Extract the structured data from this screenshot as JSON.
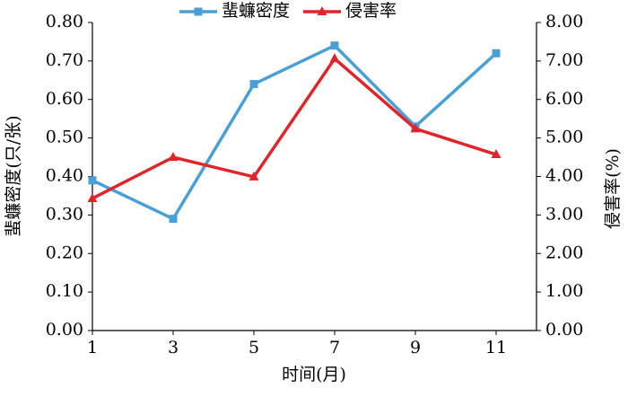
{
  "chart_data": {
    "type": "line",
    "x": [
      1,
      3,
      5,
      7,
      9,
      11
    ],
    "xlim": [
      1,
      12
    ],
    "xticks": [
      1,
      3,
      5,
      7,
      9,
      11
    ],
    "ylim": [
      0,
      0.8
    ],
    "yticks": [
      {
        "value": 0,
        "label": "0.00"
      },
      {
        "value": 0.1,
        "label": "0.10"
      },
      {
        "value": 0.2,
        "label": "0.20"
      },
      {
        "value": 0.3,
        "label": "0.30"
      },
      {
        "value": 0.4,
        "label": "0.40"
      },
      {
        "value": 0.5,
        "label": "0.50"
      },
      {
        "value": 0.6,
        "label": "0.60"
      },
      {
        "value": 0.7,
        "label": "0.70"
      },
      {
        "value": 0.8,
        "label": "0.80"
      }
    ],
    "y2lim": [
      0,
      8
    ],
    "y2ticks": [
      {
        "value": 0,
        "label": "0.00"
      },
      {
        "value": 1,
        "label": "1.00"
      },
      {
        "value": 2,
        "label": "2.00"
      },
      {
        "value": 3,
        "label": "3.00"
      },
      {
        "value": 4,
        "label": "4.00"
      },
      {
        "value": 5,
        "label": "5.00"
      },
      {
        "value": 6,
        "label": "6.00"
      },
      {
        "value": 7,
        "label": "7.00"
      },
      {
        "value": 8,
        "label": "8.00"
      }
    ],
    "x_label": "时间(月)",
    "y_label": "蜚蠊密度(只/张)",
    "y2_label": "侵害率(%)",
    "series": [
      {
        "name": "蜚蠊密度",
        "color": "#4a9fd5",
        "marker": "square",
        "values": [
          0.39,
          0.29,
          0.64,
          0.74,
          0.53,
          0.72
        ]
      },
      {
        "name": "侵害率",
        "color": "#e0252a",
        "marker": "triangle",
        "axis": "y2",
        "values": [
          3.43,
          4.5,
          3.99,
          7.06,
          5.24,
          4.57
        ]
      }
    ]
  }
}
